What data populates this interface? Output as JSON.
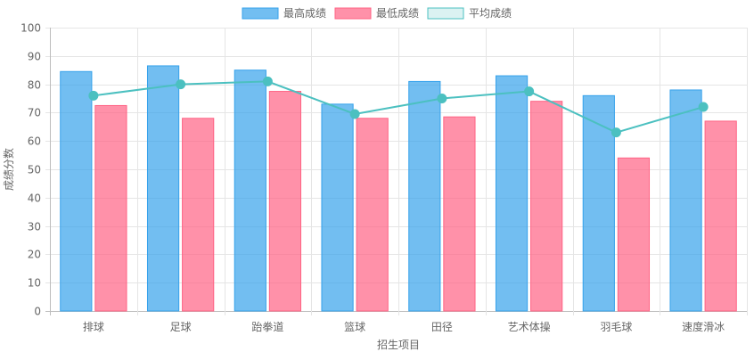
{
  "chart_data": {
    "type": "bar",
    "title": "",
    "xlabel": "招生项目",
    "ylabel": "成绩分数",
    "ylim": [
      0,
      100
    ],
    "yticks": [
      0,
      10,
      20,
      30,
      40,
      50,
      60,
      70,
      80,
      90,
      100
    ],
    "grid": true,
    "legend_position": "top-center",
    "categories": [
      "排球",
      "足球",
      "跆拳道",
      "篮球",
      "田径",
      "艺术体操",
      "羽毛球",
      "速度滑冰"
    ],
    "series": [
      {
        "name": "最高成绩",
        "type": "bar",
        "color": "#36a2eb",
        "values": [
          84.5,
          86.5,
          85,
          73,
          81,
          83,
          76,
          78
        ]
      },
      {
        "name": "最低成绩",
        "type": "bar",
        "color": "#ff6384",
        "values": [
          72.5,
          68,
          77.5,
          68,
          68.5,
          74,
          54,
          67
        ]
      },
      {
        "name": "平均成绩",
        "type": "line",
        "color": "#4bc0c0",
        "values": [
          76,
          80,
          81,
          69.5,
          75,
          77.5,
          63,
          72
        ]
      }
    ]
  }
}
